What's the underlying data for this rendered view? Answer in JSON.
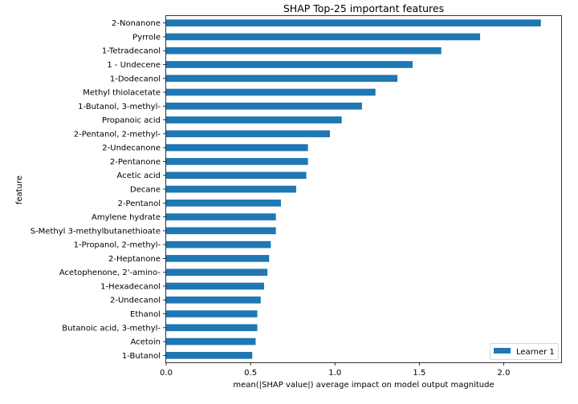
{
  "chart_data": {
    "type": "bar",
    "orientation": "horizontal",
    "title": "SHAP Top-25 important features",
    "xlabel": "mean(|SHAP value|) average impact on model output magnitude",
    "ylabel": "feature",
    "xlim": [
      0,
      2.34
    ],
    "xticks": [
      {
        "value": 0,
        "label": "0.0"
      },
      {
        "value": 0.5,
        "label": "0.5"
      },
      {
        "value": 1.0,
        "label": "1.0"
      },
      {
        "value": 1.5,
        "label": "1.5"
      },
      {
        "value": 2.0,
        "label": "2.0"
      }
    ],
    "grid": false,
    "legend_position": "bottom-right",
    "series": [
      {
        "name": "Learner 1",
        "color": "#1f77b4",
        "categories": [
          "2-Nonanone",
          "Pyrrole",
          "1-Tetradecanol",
          "1 - Undecene",
          "1-Dodecanol",
          "Methyl thiolacetate",
          "1-Butanol, 3-methyl-",
          "Propanoic acid",
          "2-Pentanol, 2-methyl-",
          "2-Undecanone",
          "2-Pentanone",
          "Acetic acid",
          "Decane",
          "2-Pentanol",
          "Amylene hydrate",
          "S-Methyl 3-methylbutanethioate",
          "1-Propanol, 2-methyl-",
          "2-Heptanone",
          "Acetophenone, 2'-amino-",
          "1-Hexadecanol",
          "2-Undecanol",
          "Ethanol",
          "Butanoic acid, 3-methyl-",
          "Acetoin",
          "1-Butanol"
        ],
        "values": [
          2.22,
          1.86,
          1.63,
          1.46,
          1.37,
          1.24,
          1.16,
          1.04,
          0.97,
          0.84,
          0.84,
          0.83,
          0.77,
          0.68,
          0.65,
          0.65,
          0.62,
          0.61,
          0.6,
          0.58,
          0.56,
          0.54,
          0.54,
          0.53,
          0.51
        ]
      }
    ]
  }
}
